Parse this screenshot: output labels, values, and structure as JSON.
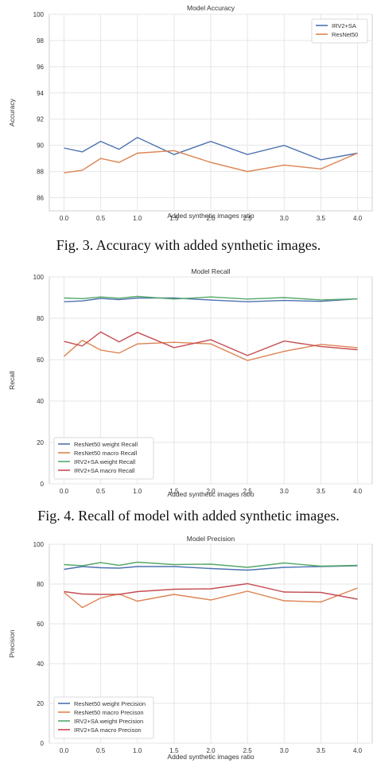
{
  "chart_data": [
    {
      "type": "line",
      "title": "Model Accuracy",
      "xlabel": "Added synthetic images ratio",
      "ylabel": "Accuracy",
      "x": [
        0.0,
        0.25,
        0.5,
        0.75,
        1.0,
        1.5,
        2.0,
        2.5,
        3.0,
        3.5,
        4.0
      ],
      "xticks": [
        "0.0",
        "0.5",
        "1.0",
        "1.5",
        "2.0",
        "2.5",
        "3.0",
        "3.5",
        "4.0"
      ],
      "xtick_values": [
        0,
        0.5,
        1,
        1.5,
        2,
        2.5,
        3,
        3.5,
        4
      ],
      "xlim": [
        -0.2,
        4.2
      ],
      "ylim": [
        85,
        100
      ],
      "yticks": [
        86,
        88,
        90,
        92,
        94,
        96,
        98,
        100
      ],
      "grid": true,
      "legend_position": "top-right",
      "series": [
        {
          "name": "IRV2+SA",
          "color": "#4c72b0",
          "values": [
            89.8,
            89.5,
            90.3,
            89.7,
            90.6,
            89.3,
            90.3,
            89.3,
            90.0,
            88.9,
            89.4
          ]
        },
        {
          "name": "ResNet50",
          "color": "#dd8452",
          "values": [
            87.9,
            88.1,
            89.0,
            88.7,
            89.4,
            89.6,
            88.7,
            88.0,
            88.5,
            88.2,
            89.4
          ]
        }
      ]
    },
    {
      "type": "line",
      "title": "Model Recall",
      "xlabel": "Added synthetic images ratio",
      "ylabel": "Recall",
      "x": [
        0.0,
        0.25,
        0.5,
        0.75,
        1.0,
        1.5,
        2.0,
        2.5,
        3.0,
        3.5,
        4.0
      ],
      "xticks": [
        "0.0",
        "0.5",
        "1.0",
        "1.5",
        "2.0",
        "2.5",
        "3.0",
        "3.5",
        "4.0"
      ],
      "xtick_values": [
        0,
        0.5,
        1,
        1.5,
        2,
        2.5,
        3,
        3.5,
        4
      ],
      "xlim": [
        -0.2,
        4.2
      ],
      "ylim": [
        0,
        100
      ],
      "yticks": [
        0,
        20,
        40,
        60,
        80,
        100
      ],
      "grid": true,
      "legend_position": "bottom-left",
      "series": [
        {
          "name": "ResNet50 weight Recall",
          "color": "#4c72b0",
          "values": [
            88.0,
            88.4,
            89.6,
            89.0,
            89.8,
            89.8,
            88.8,
            88.0,
            88.6,
            88.2,
            89.4
          ]
        },
        {
          "name": "ResNet50 macro Recall",
          "color": "#dd8452",
          "values": [
            61.6,
            69.4,
            64.6,
            63.2,
            67.6,
            68.4,
            67.6,
            59.6,
            64.0,
            67.4,
            65.8
          ]
        },
        {
          "name": "IRV2+SA weight Recall",
          "color": "#55a868",
          "values": [
            89.8,
            89.5,
            90.3,
            89.7,
            90.6,
            89.3,
            90.3,
            89.3,
            90.0,
            88.9,
            89.4
          ]
        },
        {
          "name": "IRV2+SA macro Recall",
          "color": "#c44e52",
          "values": [
            68.8,
            66.6,
            73.4,
            68.6,
            73.2,
            65.8,
            69.6,
            62.0,
            69.0,
            66.4,
            64.8
          ]
        }
      ]
    },
    {
      "type": "line",
      "title": "Model Precision",
      "xlabel": "Added synthetic images ratio",
      "ylabel": "Precision",
      "x": [
        0.0,
        0.25,
        0.5,
        0.75,
        1.0,
        1.5,
        2.0,
        2.5,
        3.0,
        3.5,
        4.0
      ],
      "xticks": [
        "0.0",
        "0.5",
        "1.0",
        "1.5",
        "2.0",
        "2.5",
        "3.0",
        "3.5",
        "4.0"
      ],
      "xtick_values": [
        0,
        0.5,
        1,
        1.5,
        2,
        2.5,
        3,
        3.5,
        4
      ],
      "xlim": [
        -0.2,
        4.2
      ],
      "ylim": [
        0,
        100
      ],
      "yticks": [
        0,
        20,
        40,
        60,
        80,
        100
      ],
      "grid": true,
      "legend_position": "bottom-left",
      "series": [
        {
          "name": "ResNet50 weight Precision",
          "color": "#4c72b0",
          "values": [
            87.4,
            88.8,
            88.2,
            88.0,
            88.8,
            88.8,
            87.8,
            87.0,
            88.4,
            88.8,
            89.2
          ]
        },
        {
          "name": "ResNet50 macro Precison",
          "color": "#dd8452",
          "values": [
            75.8,
            68.2,
            73.0,
            75.0,
            71.4,
            74.8,
            72.0,
            76.4,
            71.6,
            71.0,
            78.0
          ]
        },
        {
          "name": "IRV2+SA weight Precision",
          "color": "#55a868",
          "values": [
            89.8,
            89.2,
            90.8,
            89.4,
            91.0,
            89.8,
            90.0,
            88.4,
            90.6,
            89.0,
            89.4
          ]
        },
        {
          "name": "IRV2+SA macro Precison",
          "color": "#c44e52",
          "values": [
            76.2,
            75.0,
            74.8,
            74.8,
            76.2,
            77.4,
            77.6,
            80.2,
            76.0,
            75.8,
            72.4
          ]
        }
      ]
    }
  ],
  "captions": {
    "fig3": "Fig. 3.  Accuracy with added synthetic images.",
    "fig4": "Fig. 4. Recall of model with added synthetic images."
  }
}
